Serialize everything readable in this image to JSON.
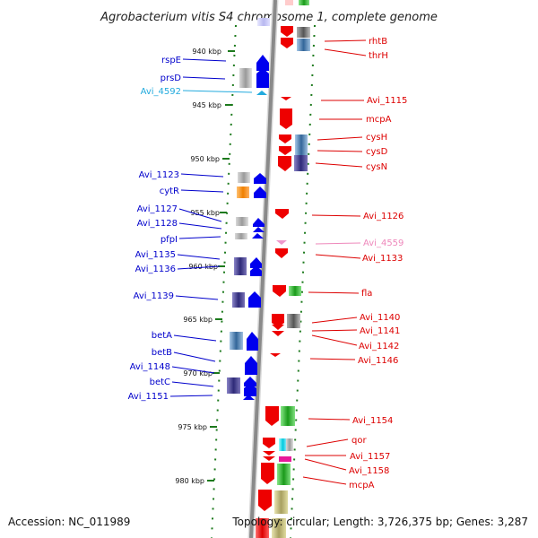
{
  "title": "Agrobacterium vitis S4 chromosome 1, complete genome",
  "accession": "Accession: NC_011989",
  "topology": "Topology: circular; Length: 3,726,375 bp; Genes: 3,287",
  "colors": {
    "left_label": "#0000cc",
    "right_label": "#dd0000",
    "faded_blue_label": "#22aadd",
    "faded_pink_label": "#ee88bb",
    "tick": "#1d7a1d",
    "backbone": "#888888",
    "forward_gene": "#0000ee",
    "reverse_gene": "#ee0000"
  },
  "ticks": [
    {
      "label": "940 kbp"
    },
    {
      "label": "945 kbp"
    },
    {
      "label": "950 kbp"
    },
    {
      "label": "955 kbp"
    },
    {
      "label": "960 kbp"
    },
    {
      "label": "965 kbp"
    },
    {
      "label": "970 kbp"
    },
    {
      "label": "975 kbp"
    },
    {
      "label": "980 kbp"
    }
  ],
  "left_labels": [
    {
      "text": "rspE"
    },
    {
      "text": "prsD"
    },
    {
      "text": "Avi_4592",
      "faded": true
    },
    {
      "text": "Avi_1123"
    },
    {
      "text": "cytR"
    },
    {
      "text": "Avi_1127"
    },
    {
      "text": "Avi_1128"
    },
    {
      "text": "pfpI"
    },
    {
      "text": "Avi_1135"
    },
    {
      "text": "Avi_1136"
    },
    {
      "text": "Avi_1139"
    },
    {
      "text": "betA"
    },
    {
      "text": "betB"
    },
    {
      "text": "Avi_1148"
    },
    {
      "text": "betC"
    },
    {
      "text": "Avi_1151"
    }
  ],
  "right_labels": [
    {
      "text": "rhtB"
    },
    {
      "text": "thrH"
    },
    {
      "text": "Avi_1115"
    },
    {
      "text": "mcpA"
    },
    {
      "text": "cysH"
    },
    {
      "text": "cysD"
    },
    {
      "text": "cysN"
    },
    {
      "text": "Avi_1126"
    },
    {
      "text": "Avi_4559",
      "faded": true
    },
    {
      "text": "Avi_1133"
    },
    {
      "text": "fla"
    },
    {
      "text": "Avi_1140"
    },
    {
      "text": "Avi_1141"
    },
    {
      "text": "Avi_1142"
    },
    {
      "text": "Avi_1146"
    },
    {
      "text": "Avi_1154"
    },
    {
      "text": "qor"
    },
    {
      "text": "Avi_1157"
    },
    {
      "text": "Avi_1158"
    },
    {
      "text": "mcpA"
    }
  ]
}
